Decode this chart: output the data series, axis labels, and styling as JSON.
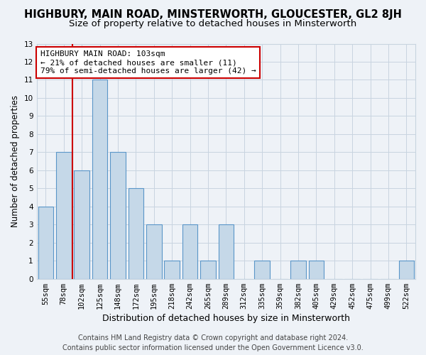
{
  "title1": "HIGHBURY, MAIN ROAD, MINSTERWORTH, GLOUCESTER, GL2 8JH",
  "title2": "Size of property relative to detached houses in Minsterworth",
  "xlabel": "Distribution of detached houses by size in Minsterworth",
  "ylabel": "Number of detached properties",
  "categories": [
    "55sqm",
    "78sqm",
    "102sqm",
    "125sqm",
    "148sqm",
    "172sqm",
    "195sqm",
    "218sqm",
    "242sqm",
    "265sqm",
    "289sqm",
    "312sqm",
    "335sqm",
    "359sqm",
    "382sqm",
    "405sqm",
    "429sqm",
    "452sqm",
    "475sqm",
    "499sqm",
    "522sqm"
  ],
  "values": [
    4,
    7,
    6,
    11,
    7,
    5,
    3,
    1,
    3,
    1,
    3,
    0,
    1,
    0,
    1,
    1,
    0,
    0,
    0,
    0,
    1
  ],
  "bar_color": "#c5d8e8",
  "bar_edge_color": "#5a96c8",
  "vline_x": 1.5,
  "annotation_line1": "HIGHBURY MAIN ROAD: 103sqm",
  "annotation_line2": "← 21% of detached houses are smaller (11)",
  "annotation_line3": "79% of semi-detached houses are larger (42) →",
  "annotation_box_color": "#ffffff",
  "annotation_box_edge": "#cc0000",
  "vline_color": "#cc0000",
  "ylim": [
    0,
    13
  ],
  "yticks": [
    0,
    1,
    2,
    3,
    4,
    5,
    6,
    7,
    8,
    9,
    10,
    11,
    12,
    13
  ],
  "footer1": "Contains HM Land Registry data © Crown copyright and database right 2024.",
  "footer2": "Contains public sector information licensed under the Open Government Licence v3.0.",
  "background_color": "#eef2f7",
  "grid_color": "#c8d4e0",
  "title1_fontsize": 10.5,
  "title2_fontsize": 9.5,
  "xlabel_fontsize": 9,
  "ylabel_fontsize": 8.5,
  "tick_fontsize": 7.5,
  "footer_fontsize": 7,
  "annotation_fontsize": 8
}
